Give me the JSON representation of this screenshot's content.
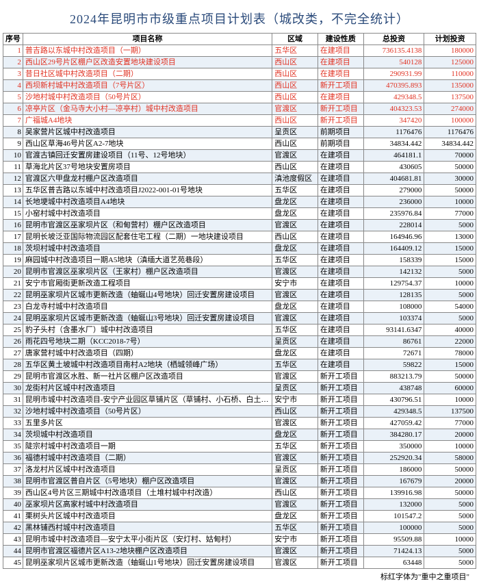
{
  "title": "2024年昆明市市级重点项目计划表（城改类，不完全统计）",
  "footnote": "标红字体为\"重中之重项目\"",
  "columns": [
    "序号",
    "项目名称",
    "区域",
    "建设性质",
    "总投资",
    "计划投资"
  ],
  "rows": [
    {
      "seq": "1",
      "name": "普吉路以东城中村改造项目（一期）",
      "area": "五华区",
      "type": "在建项目",
      "total": "736135.4138",
      "plan": "180000",
      "red": true
    },
    {
      "seq": "2",
      "name": "西山区29号片区棚户区改造安置地块建设项目",
      "area": "西山区",
      "type": "在建项目",
      "total": "540128",
      "plan": "125000",
      "red": true
    },
    {
      "seq": "3",
      "name": "昔日社区城中村改造项目（二期）",
      "area": "西山区",
      "type": "在建项目",
      "total": "290931.99",
      "plan": "110000",
      "red": true
    },
    {
      "seq": "4",
      "name": "西坝新村城中村改造项目（7号片区）",
      "area": "西山区",
      "type": "新开工项目",
      "total": "470395.893",
      "plan": "135000",
      "red": true
    },
    {
      "seq": "5",
      "name": "沙地村城中村改造项目（50号片区）",
      "area": "西山区",
      "type": "在建项目",
      "total": "429348.5",
      "plan": "137500",
      "red": true
    },
    {
      "seq": "6",
      "name": "凉亭片区（金马寺大小村—凉亭村）城中村改造项目",
      "area": "官渡区",
      "type": "新开工项目",
      "total": "404323.53",
      "plan": "274000",
      "red": true
    },
    {
      "seq": "7",
      "name": "广福城A4地块",
      "area": "西山区",
      "type": "新开工项目",
      "total": "347420",
      "plan": "100000",
      "red": true
    },
    {
      "seq": "8",
      "name": "吴家营片区城中村改造项目",
      "area": "呈贡区",
      "type": "前期项目",
      "total": "1176476",
      "plan": "1176476",
      "red": false
    },
    {
      "seq": "9",
      "name": "西山区草海46号片区A2-7地块",
      "area": "西山区",
      "type": "前期项目",
      "total": "34834.442",
      "plan": "34834.442",
      "red": false
    },
    {
      "seq": "10",
      "name": "官渡古镇回迁安置房建设项目（11号、12号地块）",
      "area": "官渡区",
      "type": "在建项目",
      "total": "464181.1",
      "plan": "70000",
      "red": false
    },
    {
      "seq": "11",
      "name": "草海北片区37号地块安置房项目",
      "area": "西山区",
      "type": "在建项目",
      "total": "430605",
      "plan": "50000",
      "red": false
    },
    {
      "seq": "12",
      "name": "官渡区六甲盘龙村棚户区改造项目",
      "area": "滇池度假区",
      "type": "在建项目",
      "total": "404681.81",
      "plan": "30000",
      "red": false
    },
    {
      "seq": "13",
      "name": "五华区普吉路以东城中村改造项目J2022-001-01号地块",
      "area": "五华区",
      "type": "在建项目",
      "total": "279000",
      "plan": "50000",
      "red": false
    },
    {
      "seq": "14",
      "name": "长地埂城中村改造项目A4地块",
      "area": "盘龙区",
      "type": "在建项目",
      "total": "236000",
      "plan": "10000",
      "red": false
    },
    {
      "seq": "15",
      "name": "小窑村城中村改造项目",
      "area": "盘龙区",
      "type": "在建项目",
      "total": "235976.84",
      "plan": "77000",
      "red": false
    },
    {
      "seq": "16",
      "name": "昆明市官渡区巫家坝片区（和甸营村）棚户区改造项目",
      "area": "官渡区",
      "type": "在建项目",
      "total": "228014",
      "plan": "5000",
      "red": false
    },
    {
      "seq": "17",
      "name": "昆明长坡泛亚国际物流园区配套住宅工程（二期）一地块建设项目",
      "area": "西山区",
      "type": "在建项目",
      "total": "164946.96",
      "plan": "13000",
      "red": false
    },
    {
      "seq": "18",
      "name": "茨坝村城中村改造项目",
      "area": "盘龙区",
      "type": "在建项目",
      "total": "164409.12",
      "plan": "15000",
      "red": false
    },
    {
      "seq": "19",
      "name": "麻园城中村改造项目一期A5地块（滇缅大道艺苑巷段）",
      "area": "五华区",
      "type": "在建项目",
      "total": "158339",
      "plan": "15000",
      "red": false
    },
    {
      "seq": "20",
      "name": "昆明市官渡区巫家坝片区（王家村）棚户区改造项目",
      "area": "官渡区",
      "type": "在建项目",
      "total": "142132",
      "plan": "5000",
      "red": false
    },
    {
      "seq": "21",
      "name": "安宁市官厢街更新改造工程项目",
      "area": "安宁市",
      "type": "在建项目",
      "total": "129754.37",
      "plan": "10000",
      "red": false
    },
    {
      "seq": "22",
      "name": "昆明巫家坝片区城市更新改造（蚰蜒山4号地块）回迁安置房建设项目",
      "area": "官渡区",
      "type": "在建项目",
      "total": "128135",
      "plan": "5000",
      "red": false
    },
    {
      "seq": "23",
      "name": "白龙寺村城中村改造项目",
      "area": "盘龙区",
      "type": "在建项目",
      "total": "108000",
      "plan": "54000",
      "red": false
    },
    {
      "seq": "24",
      "name": "昆明巫家坝片区城市更新改造（蚰蜒山3号地块）回迁安置房建设项目",
      "area": "官渡区",
      "type": "在建项目",
      "total": "103374",
      "plan": "5000",
      "red": false
    },
    {
      "seq": "25",
      "name": "豹子头村（含墨水厂）城中村改造项目",
      "area": "五华区",
      "type": "在建项目",
      "total": "93141.6347",
      "plan": "40000",
      "red": false
    },
    {
      "seq": "26",
      "name": "雨花四号地块二期（KCC2018-7号）",
      "area": "呈贡区",
      "type": "在建项目",
      "total": "86761",
      "plan": "22000",
      "red": false
    },
    {
      "seq": "27",
      "name": "唐家营村城中村改造项目（四期）",
      "area": "盘龙区",
      "type": "在建项目",
      "total": "72671",
      "plan": "78000",
      "red": false
    },
    {
      "seq": "28",
      "name": "五华区黄土坡城中村改造项目南村A2地块（栖城领峰广场）",
      "area": "五华区",
      "type": "在建项目",
      "total": "59822",
      "plan": "15000",
      "red": false
    },
    {
      "seq": "29",
      "name": "昆明市官渡区水胜、新一社片区棚户区改造项目",
      "area": "官渡区",
      "type": "新开工项目",
      "total": "883213.79",
      "plan": "50000",
      "red": false
    },
    {
      "seq": "30",
      "name": "龙街村片区城中村改造项目",
      "area": "呈贡区",
      "type": "新开工项目",
      "total": "438748",
      "plan": "60000",
      "red": false
    },
    {
      "seq": "31",
      "name": "昆明市城中村改造项目-安宁产业园区草铺片区（草铺村、小石桥、白土村、大村）",
      "area": "安宁市",
      "type": "新开工项目",
      "total": "430796.51",
      "plan": "10000",
      "red": false
    },
    {
      "seq": "32",
      "name": "沙地村城中村改造项目（50号片区）",
      "area": "西山区",
      "type": "新开工项目",
      "total": "429348.5",
      "plan": "137500",
      "red": false
    },
    {
      "seq": "33",
      "name": "五里多片区",
      "area": "官渡区",
      "type": "新开工项目",
      "total": "427059.42",
      "plan": "77000",
      "red": false
    },
    {
      "seq": "34",
      "name": "茨坝城中村改造项目",
      "area": "盘龙区",
      "type": "新开工项目",
      "total": "384280.17",
      "plan": "20000",
      "red": false
    },
    {
      "seq": "35",
      "name": "陡宗村城中村改造项目一期",
      "area": "五华区",
      "type": "新开工项目",
      "total": "350000",
      "plan": "10000",
      "red": false
    },
    {
      "seq": "36",
      "name": "福德村城中村改造项目（二期）",
      "area": "官渡区",
      "type": "新开工项目",
      "total": "252920.34",
      "plan": "58000",
      "red": false
    },
    {
      "seq": "37",
      "name": "洛龙村片区城中村改造项目",
      "area": "呈贡区",
      "type": "新开工项目",
      "total": "186000",
      "plan": "50000",
      "red": false
    },
    {
      "seq": "38",
      "name": "昆明市官渡区普自片区（5号地块）棚户区改造项目",
      "area": "官渡区",
      "type": "新开工项目",
      "total": "167679",
      "plan": "20000",
      "red": false
    },
    {
      "seq": "39",
      "name": "西山区4号片区三期城中村改造项目（土堆村城中村改造）",
      "area": "西山区",
      "type": "新开工项目",
      "total": "139916.98",
      "plan": "50000",
      "red": false
    },
    {
      "seq": "40",
      "name": "巫家坝片区高家村城中村改造项目",
      "area": "官渡区",
      "type": "新开工项目",
      "total": "132000",
      "plan": "5000",
      "red": false
    },
    {
      "seq": "41",
      "name": "栗树头片区城中村改造项目",
      "area": "盘龙区",
      "type": "新开工项目",
      "total": "101547.2",
      "plan": "5000",
      "red": false
    },
    {
      "seq": "42",
      "name": "黑林铺西村城中村改造项目",
      "area": "五华区",
      "type": "新开工项目",
      "total": "100000",
      "plan": "5000",
      "red": false
    },
    {
      "seq": "43",
      "name": "昆明市城中村改造项目—安宁太平小街片区（安灯村、姑甸村）",
      "area": "安宁市",
      "type": "新开工项目",
      "total": "95509.88",
      "plan": "10000",
      "red": false
    },
    {
      "seq": "44",
      "name": "昆明市官渡区福德片区A13-2地块棚户区改造项目",
      "area": "官渡区",
      "type": "新开工项目",
      "total": "71424.13",
      "plan": "5000",
      "red": false
    },
    {
      "seq": "45",
      "name": "昆明巫家坝片区城市更新改造（蚰蜒山1号地块）回迁安置房建设项目",
      "area": "官渡区",
      "type": "新开工项目",
      "total": "63448",
      "plan": "5000",
      "red": false
    }
  ]
}
